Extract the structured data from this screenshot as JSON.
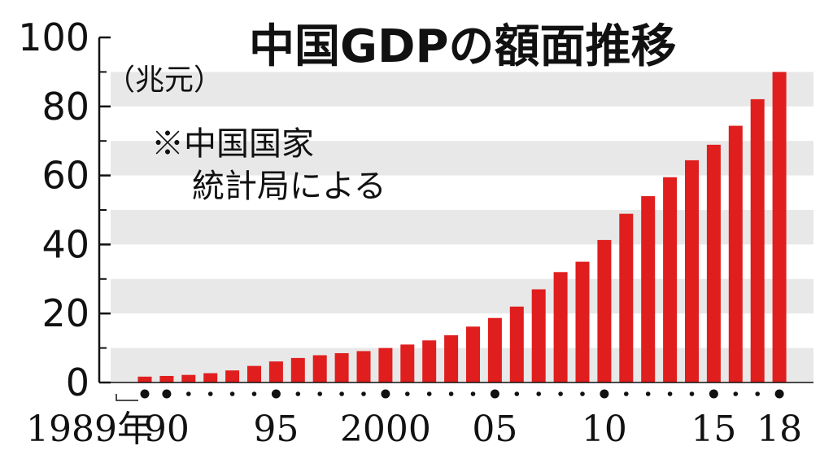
{
  "chart_data": {
    "type": "bar",
    "title": "中国GDPの額面推移",
    "ylabel": "（兆元）",
    "note_line1": "※中国国家",
    "note_line2": "統計局による",
    "ylim": [
      0,
      100
    ],
    "yticks": [
      "0",
      "20",
      "40",
      "60",
      "80",
      "100"
    ],
    "categories": [
      "1989",
      "1990",
      "1991",
      "1992",
      "1993",
      "1994",
      "1995",
      "1996",
      "1997",
      "1998",
      "1999",
      "2000",
      "2001",
      "2002",
      "2003",
      "2004",
      "2005",
      "2006",
      "2007",
      "2008",
      "2009",
      "2010",
      "2011",
      "2012",
      "2013",
      "2014",
      "2015",
      "2016",
      "2017",
      "2018"
    ],
    "values": [
      1.7,
      1.9,
      2.2,
      2.7,
      3.5,
      4.8,
      6.1,
      7.1,
      7.9,
      8.5,
      9.1,
      10.0,
      11.0,
      12.2,
      13.7,
      16.2,
      18.7,
      22.0,
      27.0,
      32.0,
      35.0,
      41.3,
      48.9,
      54.0,
      59.5,
      64.4,
      68.9,
      74.4,
      82.1,
      90.0
    ],
    "x_tick_labels": [
      {
        "category": "1989",
        "text": "1989年"
      },
      {
        "category": "1990",
        "text": "90"
      },
      {
        "category": "1995",
        "text": "95"
      },
      {
        "category": "2000",
        "text": "2000"
      },
      {
        "category": "2005",
        "text": "05"
      },
      {
        "category": "2010",
        "text": "10"
      },
      {
        "category": "2015",
        "text": "15"
      },
      {
        "category": "2018",
        "text": "18"
      }
    ],
    "major_marker_categories": [
      "1989",
      "1990",
      "1995",
      "2000",
      "2005",
      "2010",
      "2015",
      "2018"
    ],
    "bar_color": "#e01e1e",
    "band_color": "#e8e8e8"
  }
}
